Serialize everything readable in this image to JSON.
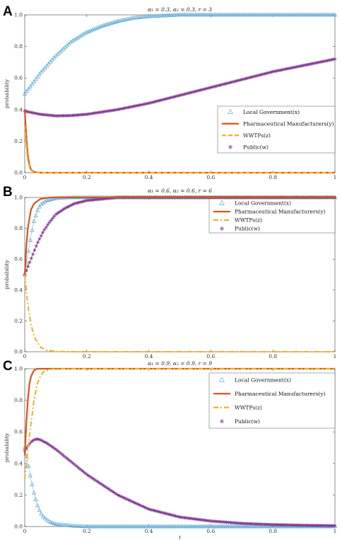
{
  "chart_data": [
    {
      "panel": "A",
      "type": "line",
      "title": "α₁ = 0.3, α₂ = 0.3, r = 3",
      "xlabel": "",
      "ylabel": "probability",
      "xlim": [
        0,
        1
      ],
      "ylim": [
        0,
        1
      ],
      "xticks": [
        "0",
        "0.2",
        "0.4",
        "0.6",
        "0.8",
        "1"
      ],
      "yticks": [
        "0.0",
        "0.2",
        "0.4",
        "0.6",
        "0.8",
        "1.0"
      ],
      "legend_position": "right",
      "series": [
        {
          "name": "Local Government(x)",
          "color": "#5aa9d6",
          "style": "triangle-markers",
          "x": [
            0,
            0.02,
            0.05,
            0.1,
            0.15,
            0.2,
            0.25,
            0.3,
            0.35,
            0.4,
            0.5,
            0.6,
            0.7,
            0.8,
            0.9,
            1.0
          ],
          "y": [
            0.5,
            0.55,
            0.63,
            0.74,
            0.83,
            0.89,
            0.93,
            0.96,
            0.98,
            0.99,
            1.0,
            1.0,
            1.0,
            1.0,
            1.0,
            1.0
          ]
        },
        {
          "name": "Pharmaceutical Manufacturers(y)",
          "color": "#d95319",
          "style": "solid",
          "x": [
            0,
            0.003,
            0.006,
            0.01,
            0.015,
            0.02,
            0.03,
            0.05,
            0.1,
            0.5,
            1.0
          ],
          "y": [
            0.4,
            0.3,
            0.2,
            0.11,
            0.05,
            0.02,
            0.005,
            0,
            0,
            0,
            0
          ]
        },
        {
          "name": "WWTPs(z)",
          "color": "#edb120",
          "style": "dashed",
          "x": [
            0,
            0.003,
            0.006,
            0.01,
            0.015,
            0.02,
            0.03,
            0.05,
            0.1,
            0.5,
            1.0
          ],
          "y": [
            0.3,
            0.22,
            0.15,
            0.08,
            0.04,
            0.015,
            0.004,
            0,
            0,
            0,
            0
          ]
        },
        {
          "name": "Public(w)",
          "color": "#7e2f8e",
          "style": "star-markers",
          "x": [
            0,
            0.05,
            0.1,
            0.15,
            0.2,
            0.3,
            0.4,
            0.5,
            0.6,
            0.7,
            0.8,
            0.9,
            1.0
          ],
          "y": [
            0.39,
            0.37,
            0.36,
            0.362,
            0.37,
            0.4,
            0.44,
            0.49,
            0.54,
            0.59,
            0.64,
            0.68,
            0.72
          ]
        }
      ]
    },
    {
      "panel": "B",
      "type": "line",
      "title": "α₁ = 0.6, α₂ = 0.6, r = 6",
      "xlabel": "",
      "ylabel": "probability",
      "xlim": [
        0,
        1
      ],
      "ylim": [
        0,
        1
      ],
      "xticks": [
        "0",
        "0.2",
        "0.4",
        "0.6",
        "0.8",
        "1"
      ],
      "yticks": [
        "0.0",
        "0.2",
        "0.4",
        "0.6",
        "0.8",
        "1.0"
      ],
      "legend_position": "top-right",
      "series": [
        {
          "name": "Local Government(x)",
          "color": "#5aa9d6",
          "style": "triangle-markers",
          "x": [
            0,
            0.01,
            0.02,
            0.03,
            0.04,
            0.05,
            0.07,
            0.1,
            0.15,
            0.2,
            0.5,
            1.0
          ],
          "y": [
            0.5,
            0.63,
            0.75,
            0.85,
            0.91,
            0.95,
            0.98,
            0.995,
            1.0,
            1.0,
            1.0,
            1.0
          ]
        },
        {
          "name": "Pharmaceutical Manufacturers(y)",
          "color": "#d95319",
          "style": "solid",
          "x": [
            0,
            0.005,
            0.01,
            0.02,
            0.03,
            0.05,
            0.08,
            0.12,
            0.2,
            0.5,
            1.0
          ],
          "y": [
            0.5,
            0.68,
            0.8,
            0.92,
            0.96,
            0.99,
            1.0,
            1.0,
            1.0,
            1.0,
            1.0
          ]
        },
        {
          "name": "WWTPs(z)",
          "color": "#edb120",
          "style": "dash-dot",
          "x": [
            0,
            0.01,
            0.02,
            0.03,
            0.05,
            0.07,
            0.1,
            0.15,
            0.2,
            0.5,
            1.0
          ],
          "y": [
            0.5,
            0.3,
            0.18,
            0.1,
            0.03,
            0.01,
            0.002,
            0,
            0,
            0,
            0
          ]
        },
        {
          "name": "Public(w)",
          "color": "#7e2f8e",
          "style": "star-markers",
          "x": [
            0,
            0.02,
            0.04,
            0.06,
            0.08,
            0.1,
            0.13,
            0.16,
            0.2,
            0.25,
            0.3,
            0.4,
            0.5,
            1.0
          ],
          "y": [
            0.5,
            0.6,
            0.7,
            0.78,
            0.84,
            0.89,
            0.93,
            0.96,
            0.98,
            0.99,
            1.0,
            1.0,
            1.0,
            1.0
          ]
        }
      ]
    },
    {
      "panel": "C",
      "type": "line",
      "title": "α₁ = 0.9, α₂ = 0.9, r = 9",
      "xlabel": "t",
      "ylabel": "probability",
      "xlim": [
        0,
        1
      ],
      "ylim": [
        0,
        1
      ],
      "xticks": [
        "0",
        "0.2",
        "0.4",
        "0.6",
        "0.8",
        "1"
      ],
      "yticks": [
        "0.0",
        "0.2",
        "0.4",
        "0.6",
        "0.8",
        "1.0"
      ],
      "legend_position": "top-right",
      "series": [
        {
          "name": "Local Government(x)",
          "color": "#5aa9d6",
          "style": "triangle-markers",
          "x": [
            0,
            0.01,
            0.02,
            0.03,
            0.04,
            0.05,
            0.06,
            0.08,
            0.1,
            0.15,
            0.2,
            0.5,
            1.0
          ],
          "y": [
            0.5,
            0.4,
            0.3,
            0.21,
            0.14,
            0.09,
            0.06,
            0.03,
            0.015,
            0.005,
            0.0,
            0.0,
            0.0
          ]
        },
        {
          "name": "Pharmaceutical Manufacturers(y)",
          "color": "#d95319",
          "style": "solid",
          "x": [
            0,
            0.005,
            0.01,
            0.015,
            0.02,
            0.03,
            0.04,
            0.05,
            0.07,
            0.1,
            0.5,
            1.0
          ],
          "y": [
            0.45,
            0.65,
            0.8,
            0.9,
            0.95,
            0.99,
            1.0,
            1.0,
            1.0,
            1.0,
            1.0,
            1.0
          ]
        },
        {
          "name": "WWTPs(z)",
          "color": "#edb120",
          "style": "dash-dot",
          "x": [
            0,
            0.01,
            0.02,
            0.03,
            0.04,
            0.05,
            0.06,
            0.08,
            0.1,
            0.5,
            1.0
          ],
          "y": [
            0.3,
            0.48,
            0.65,
            0.8,
            0.9,
            0.95,
            0.98,
            0.995,
            1.0,
            1.0,
            1.0
          ]
        },
        {
          "name": "Public(w)",
          "color": "#7e2f8e",
          "style": "star-markers",
          "x": [
            0,
            0.01,
            0.02,
            0.03,
            0.04,
            0.05,
            0.07,
            0.1,
            0.15,
            0.2,
            0.3,
            0.4,
            0.5,
            0.6,
            0.7,
            0.8,
            0.9,
            1.0
          ],
          "y": [
            0.48,
            0.51,
            0.535,
            0.55,
            0.555,
            0.55,
            0.53,
            0.49,
            0.41,
            0.33,
            0.2,
            0.11,
            0.06,
            0.035,
            0.02,
            0.012,
            0.008,
            0.005
          ]
        }
      ]
    }
  ]
}
